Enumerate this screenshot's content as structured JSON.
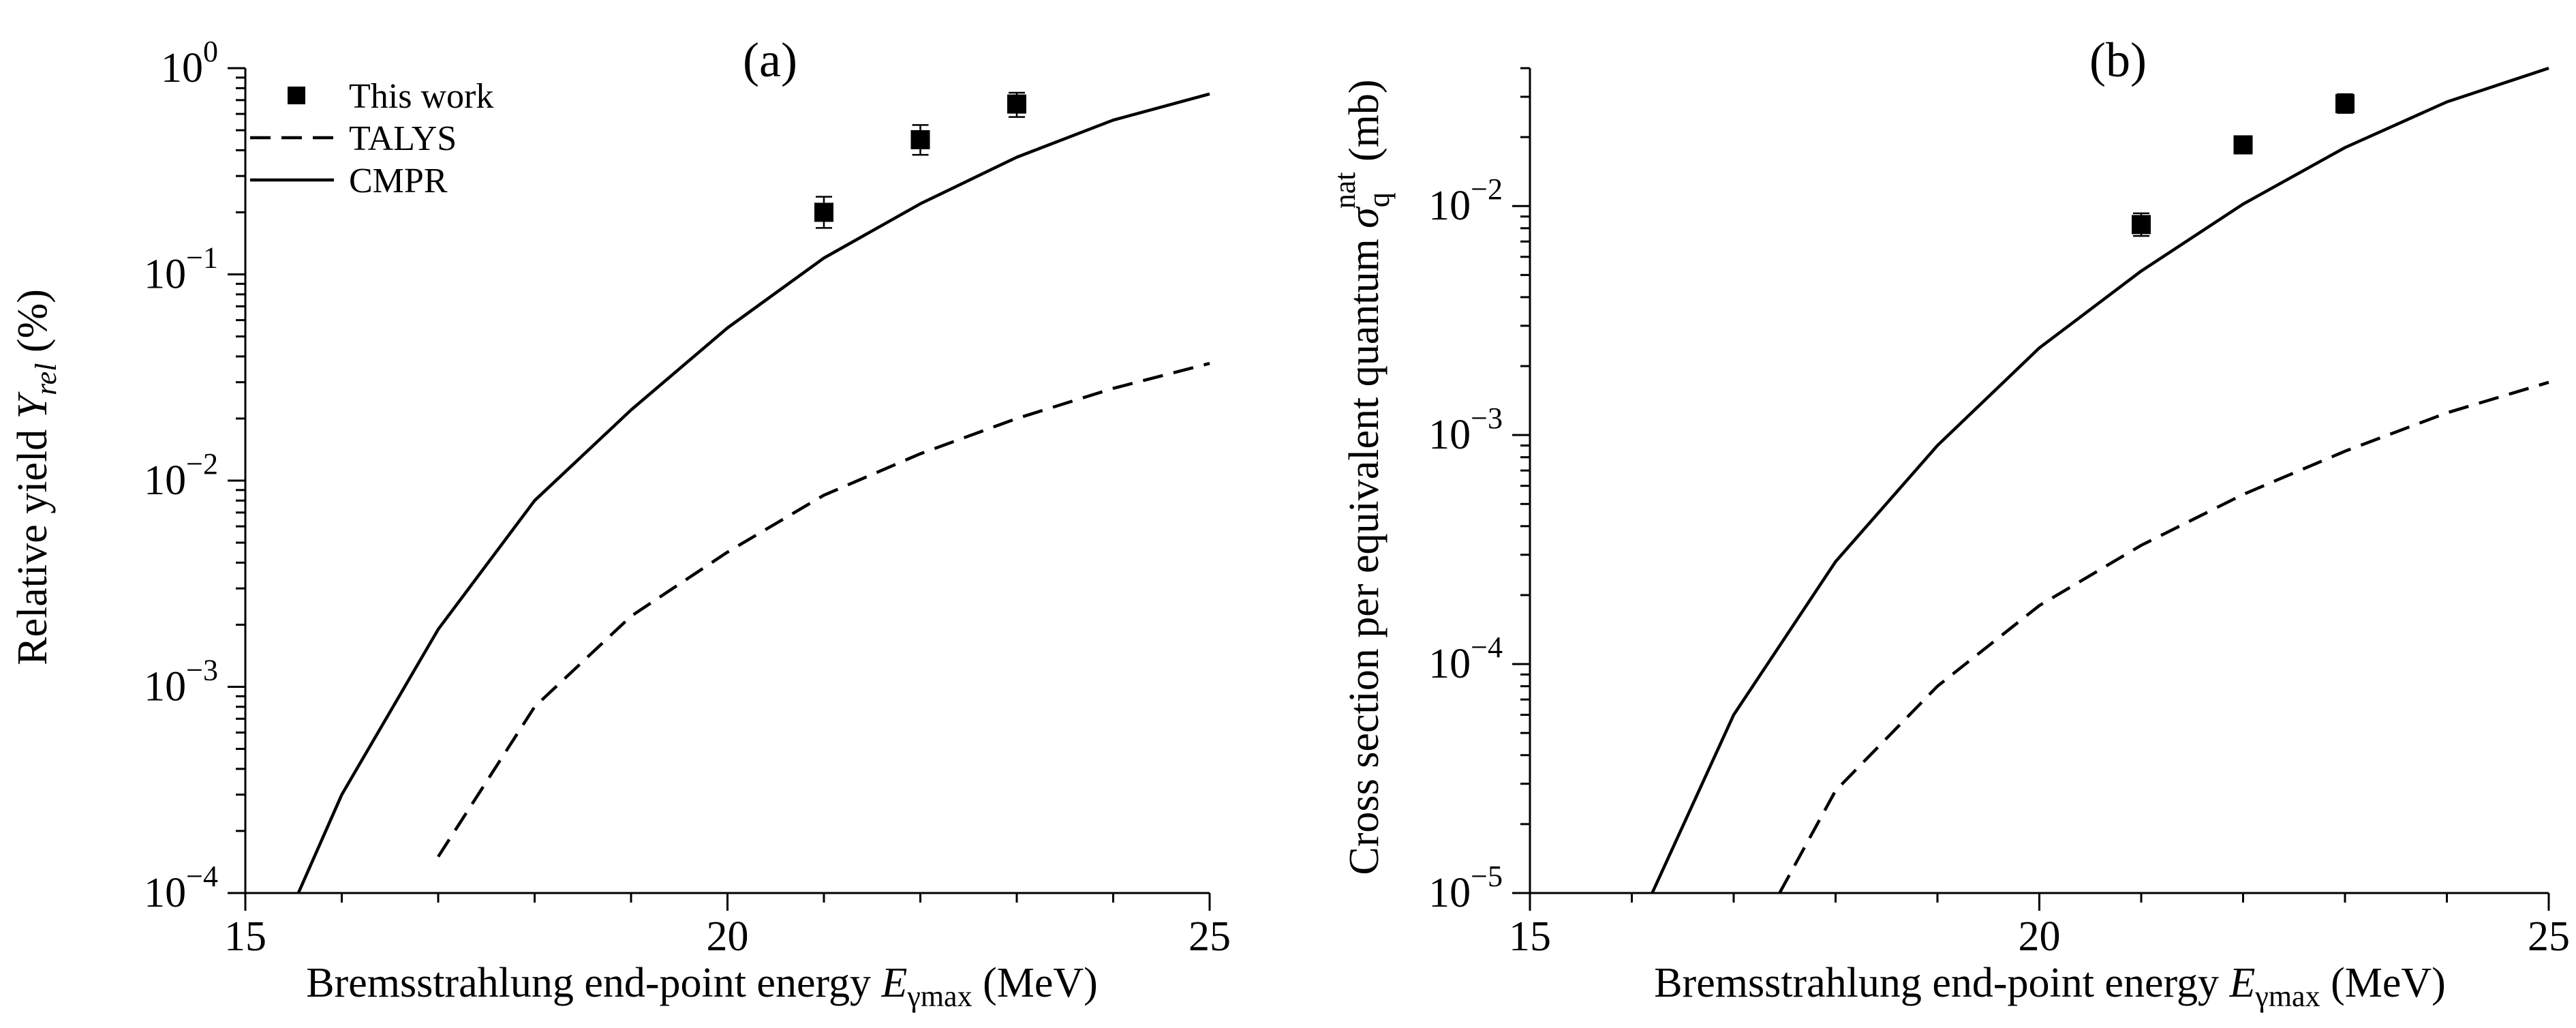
{
  "chart_data": [
    {
      "type": "line",
      "panel_label": "(a)",
      "xlabel_parts": [
        "Bremsstrahlung end-point energy ",
        "E",
        "γmax",
        " (MeV)"
      ],
      "ylabel_parts": [
        "Relative yield ",
        "Y",
        "rel",
        " (%)"
      ],
      "xlim": [
        15,
        25
      ],
      "ylim": [
        0.0001,
        1
      ],
      "yscale": "log",
      "x_ticks": [
        15,
        20,
        25
      ],
      "y_ticks": [
        {
          "value": 0.0001,
          "base": "10",
          "exp": "−4"
        },
        {
          "value": 0.001,
          "base": "10",
          "exp": "−3"
        },
        {
          "value": 0.01,
          "base": "10",
          "exp": "−2"
        },
        {
          "value": 0.1,
          "base": "10",
          "exp": "−1"
        },
        {
          "value": 1,
          "base": "10",
          "exp": "0"
        }
      ],
      "legend": {
        "placement": "top-left",
        "entries": [
          {
            "label": "This work",
            "style": "square-marker"
          },
          {
            "label": "TALYS",
            "style": "dashed-line"
          },
          {
            "label": "CMPR",
            "style": "solid-line"
          }
        ]
      },
      "series": [
        {
          "name": "This work",
          "style": "square-marker",
          "points": [
            {
              "x": 21,
              "y": 0.2,
              "err_low": 0.168,
              "err_high": 0.238
            },
            {
              "x": 22,
              "y": 0.45,
              "err_low": 0.38,
              "err_high": 0.53
            },
            {
              "x": 23,
              "y": 0.67,
              "err_low": 0.58,
              "err_high": 0.76
            }
          ]
        },
        {
          "name": "TALYS",
          "style": "dashed-line",
          "points": [
            {
              "x": 17,
              "y": 0.00015
            },
            {
              "x": 18,
              "y": 0.0008
            },
            {
              "x": 19,
              "y": 0.0022
            },
            {
              "x": 20,
              "y": 0.0045
            },
            {
              "x": 21,
              "y": 0.0085
            },
            {
              "x": 22,
              "y": 0.0135
            },
            {
              "x": 23,
              "y": 0.02
            },
            {
              "x": 24,
              "y": 0.028
            },
            {
              "x": 25,
              "y": 0.037
            }
          ]
        },
        {
          "name": "CMPR",
          "style": "solid-line",
          "points": [
            {
              "x": 15.55,
              "y": 0.0001
            },
            {
              "x": 16,
              "y": 0.0003
            },
            {
              "x": 17,
              "y": 0.0019
            },
            {
              "x": 18,
              "y": 0.008
            },
            {
              "x": 19,
              "y": 0.022
            },
            {
              "x": 20,
              "y": 0.055
            },
            {
              "x": 21,
              "y": 0.12
            },
            {
              "x": 22,
              "y": 0.22
            },
            {
              "x": 23,
              "y": 0.37
            },
            {
              "x": 24,
              "y": 0.56
            },
            {
              "x": 25,
              "y": 0.75
            }
          ]
        }
      ]
    },
    {
      "type": "line",
      "panel_label": "(b)",
      "xlabel_parts": [
        "Bremsstrahlung end-point energy ",
        "E",
        "γmax",
        " (MeV)"
      ],
      "ylabel_parts": [
        "Cross section per equivalent quantum ",
        "σ",
        "q",
        "nat",
        " (mb)"
      ],
      "xlim": [
        15,
        25
      ],
      "ylim": [
        1e-05,
        0.04
      ],
      "yscale": "log",
      "x_ticks": [
        15,
        20,
        25
      ],
      "y_ticks": [
        {
          "value": 1e-05,
          "base": "10",
          "exp": "−5"
        },
        {
          "value": 0.0001,
          "base": "10",
          "exp": "−4"
        },
        {
          "value": 0.001,
          "base": "10",
          "exp": "−3"
        },
        {
          "value": 0.01,
          "base": "10",
          "exp": "−2"
        }
      ],
      "series": [
        {
          "name": "This work",
          "style": "square-marker",
          "points": [
            {
              "x": 21,
              "y": 0.0083,
              "err_low": 0.0074,
              "err_high": 0.0093
            },
            {
              "x": 22,
              "y": 0.0185,
              "err_low": 0.017,
              "err_high": 0.02
            },
            {
              "x": 23,
              "y": 0.028,
              "err_low": 0.0255,
              "err_high": 0.0308
            }
          ]
        },
        {
          "name": "TALYS",
          "style": "dashed-line",
          "points": [
            {
              "x": 17.45,
              "y": 1e-05
            },
            {
              "x": 18,
              "y": 2.8e-05
            },
            {
              "x": 19,
              "y": 8e-05
            },
            {
              "x": 20,
              "y": 0.00018
            },
            {
              "x": 21,
              "y": 0.00033
            },
            {
              "x": 22,
              "y": 0.00055
            },
            {
              "x": 23,
              "y": 0.00085
            },
            {
              "x": 24,
              "y": 0.00125
            },
            {
              "x": 25,
              "y": 0.0017
            }
          ]
        },
        {
          "name": "CMPR",
          "style": "solid-line",
          "points": [
            {
              "x": 16.2,
              "y": 1e-05
            },
            {
              "x": 17,
              "y": 6e-05
            },
            {
              "x": 18,
              "y": 0.00028
            },
            {
              "x": 19,
              "y": 0.0009
            },
            {
              "x": 20,
              "y": 0.0024
            },
            {
              "x": 21,
              "y": 0.0052
            },
            {
              "x": 22,
              "y": 0.0102
            },
            {
              "x": 23,
              "y": 0.018
            },
            {
              "x": 24,
              "y": 0.0285
            },
            {
              "x": 25,
              "y": 0.04
            }
          ]
        }
      ]
    }
  ]
}
